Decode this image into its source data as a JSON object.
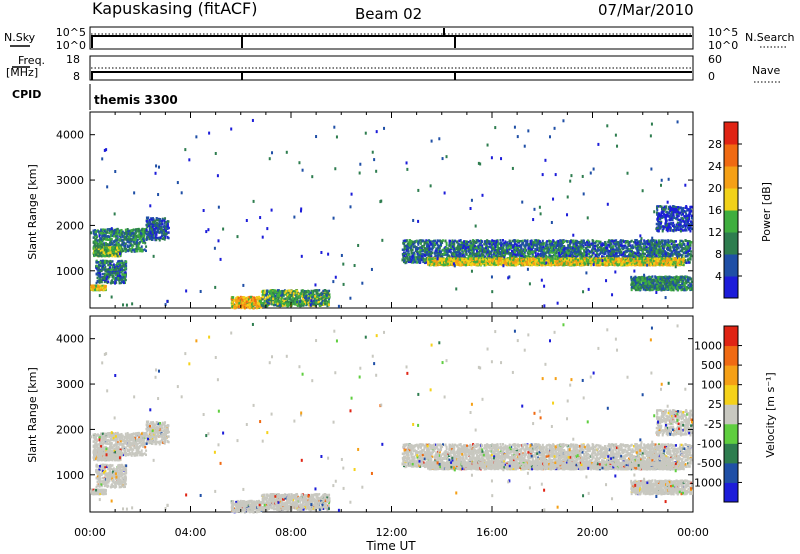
{
  "header": {
    "station": "Kapuskasing (fitACF)",
    "beam": "Beam 02",
    "date": "07/Mar/2010"
  },
  "top_panels": {
    "nsky_label": "N.Sky",
    "nsearch_label": "N.Search",
    "nsky_ticks": [
      "10^5",
      "10^0"
    ],
    "nsky_right_ticks": [
      "10^5",
      "10^0"
    ],
    "freq_label": "Freq.",
    "freq_unit": "[MHz]",
    "freq_ticks": [
      "18",
      "8"
    ],
    "nave_label": "Nave",
    "nave_ticks": [
      "60",
      "0"
    ],
    "cpid_label": "CPID",
    "cpid_value": "themis 3300"
  },
  "chart_data": [
    {
      "type": "heatmap",
      "parameter": "Power",
      "ylabel": "Slant Range [km]",
      "xlabel": "Time UT",
      "colorbar_label": "Power [dB]",
      "colorbar_ticks": [
        "28",
        "24",
        "20",
        "16",
        "12",
        "8",
        "4"
      ],
      "colorbar_colors": [
        "#1c1cd9",
        "#1f4fa6",
        "#2e7d4f",
        "#3fae3f",
        "#f2d21a",
        "#f5a016",
        "#f06a12",
        "#e02414"
      ],
      "xlim": [
        "00:00",
        "24:00"
      ],
      "ylim": [
        180,
        4500
      ],
      "yticks": [
        1000,
        2000,
        3000,
        4000
      ],
      "bands": [
        {
          "t": [
            0.1,
            2.2
          ],
          "r": [
            1450,
            1950
          ],
          "v": 12
        },
        {
          "t": [
            0.1,
            1.2
          ],
          "r": [
            1350,
            1550
          ],
          "v": 16
        },
        {
          "t": [
            0.2,
            1.4
          ],
          "r": [
            750,
            1250
          ],
          "v": 10
        },
        {
          "t": [
            0.0,
            0.6
          ],
          "r": [
            600,
            700
          ],
          "v": 20
        },
        {
          "t": [
            2.2,
            3.1
          ],
          "r": [
            1700,
            2200
          ],
          "v": 8
        },
        {
          "t": [
            5.6,
            6.8
          ],
          "r": [
            200,
            450
          ],
          "v": 22
        },
        {
          "t": [
            6.8,
            9.5
          ],
          "r": [
            250,
            600
          ],
          "v": 14
        },
        {
          "t": [
            12.4,
            23.9
          ],
          "r": [
            1200,
            1700
          ],
          "v": 10
        },
        {
          "t": [
            13.4,
            23.6
          ],
          "r": [
            1150,
            1300
          ],
          "v": 20
        },
        {
          "t": [
            21.5,
            24.0
          ],
          "r": [
            600,
            900
          ],
          "v": 12
        },
        {
          "t": [
            22.5,
            24.0
          ],
          "r": [
            1900,
            2450
          ],
          "v": 6
        }
      ]
    },
    {
      "type": "heatmap",
      "parameter": "Velocity",
      "ylabel": "Slant Range [km]",
      "xlabel": "Time UT",
      "colorbar_label": "Velocity [m s⁻¹]",
      "colorbar_ticks": [
        "1000",
        "500",
        "100",
        "25",
        "-25",
        "-100",
        "-500",
        "-1000"
      ],
      "colorbar_colors": [
        "#1c1cd9",
        "#1f4fa6",
        "#2e7d4f",
        "#5fce3f",
        "#c8c8c0",
        "#f5d21a",
        "#f5a016",
        "#f06a12",
        "#e02414"
      ],
      "ground_scatter_color": "#c8c8c0",
      "xlim": [
        "00:00",
        "24:00"
      ],
      "ylim": [
        180,
        4500
      ],
      "yticks": [
        1000,
        2000,
        3000,
        4000
      ],
      "xticks": [
        "00:00",
        "04:00",
        "08:00",
        "12:00",
        "16:00",
        "20:00",
        "00:00"
      ]
    }
  ]
}
